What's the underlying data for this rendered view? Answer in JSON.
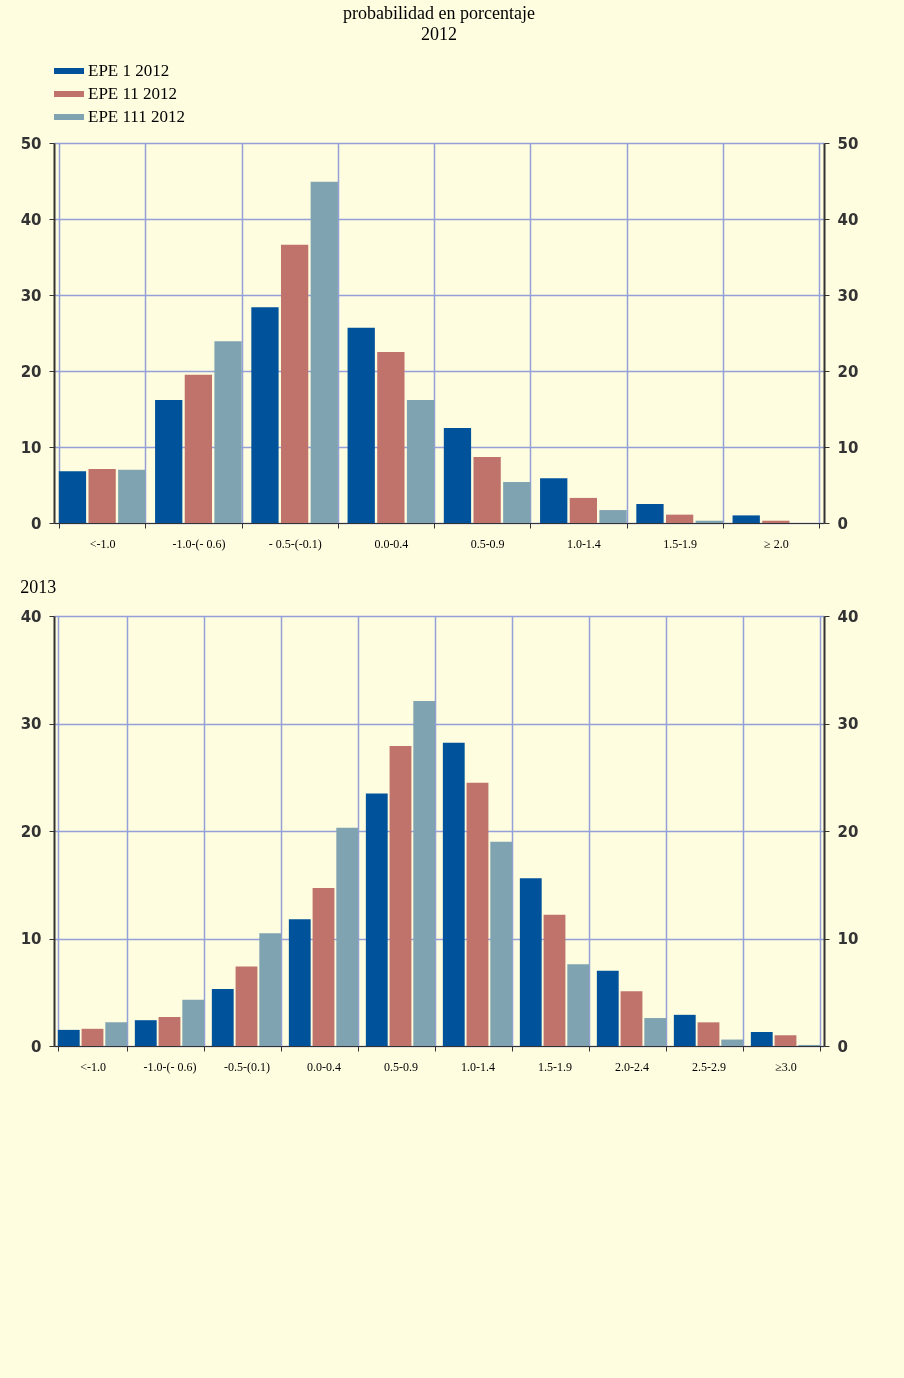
{
  "chart_data": [
    {
      "type": "bar",
      "title": "probabilidad en porcentaje",
      "subtitle": "2012",
      "categories": [
        "<-1.0",
        "-1.0-(- 0.6)",
        "- 0.5-(-0.1)",
        "0.0-0.4",
        "0.5-0.9",
        "1.0-1.4",
        "1.5-1.9",
        "≥ 2.0"
      ],
      "series": [
        {
          "name": "EPE 1 2012",
          "color": "#00529b",
          "values": [
            6.8,
            16.2,
            28.4,
            25.7,
            12.5,
            5.9,
            2.5,
            1.0
          ]
        },
        {
          "name": "EPE 11 2012",
          "color": "#c0736a",
          "values": [
            7.1,
            19.5,
            36.6,
            22.5,
            8.7,
            3.3,
            1.1,
            0.3
          ]
        },
        {
          "name": "EPE 111 2012",
          "color": "#7fa3b0",
          "values": [
            7.0,
            23.9,
            44.9,
            16.2,
            5.4,
            1.7,
            0.3,
            0
          ]
        }
      ],
      "ylim": [
        0,
        50
      ],
      "yticks": [
        0,
        10,
        20,
        30,
        40,
        50
      ],
      "y2lim": [
        0,
        50
      ],
      "y2ticks": [
        0,
        10,
        20,
        30,
        40,
        50
      ],
      "grid": true,
      "legend": "top"
    },
    {
      "type": "bar",
      "title": "2013",
      "categories": [
        "<-1.0",
        "-1.0-(- 0.6)",
        "-0.5-(0.1)",
        "0.0-0.4",
        "0.5-0.9",
        "1.0-1.4",
        "1.5-1.9",
        "2.0-2.4",
        "2.5-2.9",
        "≥3.0"
      ],
      "series": [
        {
          "color": "#00529b",
          "values": [
            1.5,
            2.4,
            5.3,
            11.8,
            23.5,
            28.2,
            15.6,
            7.0,
            2.9,
            1.3
          ]
        },
        {
          "color": "#c0736a",
          "values": [
            1.6,
            2.7,
            7.4,
            14.7,
            27.9,
            24.5,
            12.2,
            5.1,
            2.2,
            1.0
          ]
        },
        {
          "color": "#7fa3b0",
          "values": [
            2.2,
            4.3,
            10.5,
            20.3,
            32.1,
            19.0,
            7.6,
            2.6,
            0.6,
            0.1
          ]
        }
      ],
      "ylim": [
        0,
        40
      ],
      "yticks": [
        0,
        10,
        20,
        30,
        40
      ],
      "y2lim": [
        0,
        40
      ],
      "y2ticks": [
        0,
        10,
        20,
        30,
        40
      ],
      "grid": true
    }
  ]
}
